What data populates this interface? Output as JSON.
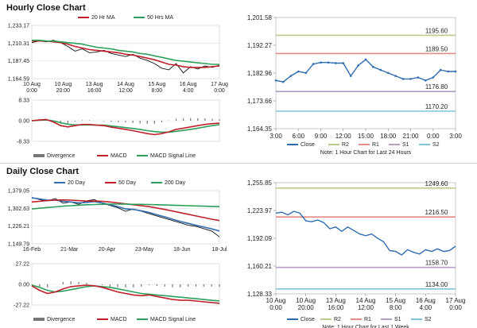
{
  "colors": {
    "ma20": "#c0202a",
    "ma50": "#2ca05a",
    "price": "#111111",
    "macd": "#c0202a",
    "signal": "#2ca05a",
    "divergence": "#777777",
    "close": "#2f6db0",
    "r2": "#b9cc88",
    "r1": "#e88a8a",
    "s1": "#b49ec4",
    "s2": "#7ec4dc"
  },
  "hourly": {
    "title": "Hourly Close Chart",
    "ma_chart": {
      "type": "line",
      "legend": [
        "20 Hr MA",
        "50 Hrs MA"
      ],
      "y_ticks": [
        "1,233.17",
        "1,210.31",
        "1,187.45",
        "1,164.59"
      ],
      "ylim": [
        1164.59,
        1233.17
      ],
      "x_ticks": [
        "10 Aug\n0:00",
        "10 Aug\n20:00",
        "13 Aug\n16:00",
        "14 Aug\n12:00",
        "15 Aug\n8:00",
        "16 Aug\n4:00",
        "17 Aug\n0:00"
      ],
      "series": [
        {
          "name": "Price",
          "values": [
            1211,
            1213,
            1212,
            1214,
            1211,
            1206,
            1200,
            1203,
            1198,
            1199,
            1201,
            1197,
            1195,
            1193,
            1196,
            1191,
            1188,
            1184,
            1178,
            1176,
            1184,
            1172,
            1180,
            1177,
            1181,
            1179,
            1182
          ]
        },
        {
          "name": "20 Hr MA",
          "values": [
            1213,
            1213,
            1213,
            1212,
            1211,
            1209,
            1206,
            1204,
            1202,
            1201,
            1200,
            1199,
            1198,
            1196,
            1195,
            1193,
            1191,
            1189,
            1186,
            1183,
            1182,
            1180,
            1179,
            1179,
            1179,
            1180,
            1181
          ]
        },
        {
          "name": "50 Hrs MA",
          "values": [
            1214,
            1214,
            1213,
            1213,
            1212,
            1211,
            1210,
            1209,
            1207,
            1205,
            1204,
            1203,
            1201,
            1200,
            1199,
            1197,
            1196,
            1194,
            1192,
            1190,
            1188,
            1187,
            1186,
            1185,
            1184,
            1183,
            1183
          ]
        }
      ]
    },
    "macd_chart": {
      "type": "line",
      "y_ticks": [
        "8.33",
        "0.00",
        "-8.33"
      ],
      "ylim": [
        -8.33,
        8.33
      ],
      "legend": [
        "Divergence",
        "MACD",
        "MACD Signal Line"
      ],
      "series": [
        {
          "name": "MACD",
          "values": [
            0,
            0.3,
            0.5,
            -0.5,
            -2,
            -2.5,
            -2,
            -1.5,
            -1.5,
            -1.8,
            -2,
            -2.6,
            -3,
            -3.5,
            -4,
            -4.6,
            -5.2,
            -5.6,
            -5.2,
            -4.5,
            -3.5,
            -3,
            -2.5,
            -2,
            -1.5,
            -1.2,
            -1
          ]
        },
        {
          "name": "MACD Signal Line",
          "values": [
            0,
            0.2,
            0.3,
            -0.1,
            -0.8,
            -1.4,
            -1.7,
            -1.7,
            -1.7,
            -1.8,
            -1.8,
            -2.1,
            -2.4,
            -2.8,
            -3.1,
            -3.5,
            -4,
            -4.4,
            -4.6,
            -4.6,
            -4.3,
            -3.9,
            -3.5,
            -3,
            -2.5,
            -2,
            -1.6
          ]
        },
        {
          "name": "Divergence",
          "values": [
            0,
            0.1,
            0.2,
            -0.4,
            -1.2,
            -1.1,
            -0.3,
            0.2,
            0.2,
            0,
            -0.2,
            -0.5,
            -0.6,
            -0.7,
            -0.9,
            -1.1,
            -1.2,
            -1.2,
            -0.6,
            0.1,
            0.8,
            0.9,
            1,
            1,
            1,
            0.8,
            0.6
          ]
        }
      ]
    },
    "intraday_chart": {
      "type": "line",
      "y_ticks": [
        "1,201.58",
        "1,192.27",
        "1,182.96",
        "1,173.66",
        "1,164.35"
      ],
      "ylim": [
        1164.35,
        1201.58
      ],
      "x_ticks": [
        "3:00",
        "6:00",
        "9:00",
        "12:00",
        "15:00",
        "18:00",
        "21:00",
        "0:00",
        "3:00"
      ],
      "levels": [
        {
          "name": "R2",
          "value": 1195.6,
          "label": "1195.60"
        },
        {
          "name": "R1",
          "value": 1189.5,
          "label": "1189.50"
        },
        {
          "name": "S1",
          "value": 1176.8,
          "label": "1176.80"
        },
        {
          "name": "S2",
          "value": 1170.2,
          "label": "1170.20"
        }
      ],
      "close": [
        1180.5,
        1180,
        1182,
        1183.5,
        1183,
        1186,
        1186.5,
        1186.5,
        1186.3,
        1186.3,
        1182,
        1185.5,
        1187.5,
        1185,
        1184,
        1183,
        1182,
        1181,
        1181,
        1181.5,
        1180.5,
        1181.5,
        1184,
        1183.5,
        1183.5
      ],
      "legend": [
        "Close",
        "R2",
        "R1",
        "S1",
        "S2"
      ],
      "note": "Note: 1 Hour Chart for Last 24 Hours"
    }
  },
  "daily": {
    "title": "Daily Close Chart",
    "ma_chart": {
      "type": "line",
      "legend": [
        "20 Day",
        "50 Day",
        "200 Day"
      ],
      "y_ticks": [
        "1,379.05",
        "1,302.63",
        "1,226.21",
        "1,149.79"
      ],
      "ylim": [
        1149.79,
        1379.05
      ],
      "x_ticks": [
        "16-Feb",
        "21-Mar",
        "20-Apr",
        "23-May",
        "18-Jun",
        "18-Jul"
      ],
      "series": [
        {
          "name": "Price",
          "values": [
            1350,
            1340,
            1335,
            1345,
            1325,
            1330,
            1320,
            1335,
            1340,
            1325,
            1315,
            1305,
            1290,
            1300,
            1290,
            1280,
            1270,
            1260,
            1250,
            1240,
            1230,
            1225,
            1215,
            1205,
            1180
          ]
        },
        {
          "name": "20 Day",
          "values": [
            1348,
            1343,
            1338,
            1338,
            1333,
            1330,
            1326,
            1328,
            1332,
            1326,
            1318,
            1310,
            1300,
            1298,
            1292,
            1285,
            1275,
            1266,
            1256,
            1246,
            1238,
            1230,
            1222,
            1214,
            1205
          ]
        },
        {
          "name": "50 Day",
          "values": [
            1330,
            1333,
            1336,
            1338,
            1339,
            1338,
            1336,
            1334,
            1334,
            1333,
            1330,
            1326,
            1322,
            1318,
            1314,
            1310,
            1304,
            1298,
            1291,
            1284,
            1277,
            1270,
            1263,
            1256,
            1250
          ]
        },
        {
          "name": "200 Day",
          "values": [
            1300,
            1303,
            1306,
            1309,
            1312,
            1314,
            1316,
            1318,
            1319,
            1320,
            1321,
            1321,
            1321,
            1320,
            1320,
            1319,
            1318,
            1317,
            1316,
            1315,
            1314,
            1313,
            1312,
            1311,
            1310
          ]
        }
      ]
    },
    "macd_chart": {
      "type": "line",
      "y_ticks": [
        "27.22",
        "0.00",
        "-27.22"
      ],
      "ylim": [
        -27.22,
        27.22
      ],
      "legend": [
        "Divergence",
        "MACD",
        "MACD Signal Line"
      ],
      "series": [
        {
          "name": "MACD",
          "values": [
            -2,
            -8,
            -12,
            -10,
            -6,
            -3,
            -2,
            -1,
            -2,
            -4,
            -7,
            -10,
            -12,
            -14,
            -15,
            -14,
            -16,
            -18,
            -20,
            -21,
            -21,
            -22,
            -23,
            -24,
            -25
          ]
        },
        {
          "name": "MACD Signal Line",
          "values": [
            -1,
            -4,
            -8,
            -10,
            -9,
            -7,
            -5,
            -3,
            -2,
            -3,
            -4,
            -6,
            -8,
            -10,
            -12,
            -13,
            -14,
            -15,
            -16,
            -17,
            -18,
            -19,
            -20,
            -21,
            -22
          ]
        },
        {
          "name": "Divergence",
          "values": [
            -1,
            -3,
            -4,
            0,
            3,
            4,
            3,
            2,
            0,
            -1,
            -3,
            -4,
            -4,
            -4,
            -3,
            -1,
            -2,
            -3,
            -4,
            -4,
            -3,
            -3,
            -3,
            -3,
            -3
          ]
        }
      ]
    },
    "hourly_week_chart": {
      "type": "line",
      "y_ticks": [
        "1,255.85",
        "1,223.97",
        "1,192.09",
        "1,160.21",
        "1,128.33"
      ],
      "ylim": [
        1128.33,
        1255.85
      ],
      "x_ticks": [
        "10 Aug\n0:00",
        "10 Aug\n20:00",
        "13 Aug\n16:00",
        "14 Aug\n12:00",
        "15 Aug\n8:00",
        "16 Aug\n4:00",
        "17 Aug\n0:00"
      ],
      "levels": [
        {
          "name": "R2",
          "value": 1249.6,
          "label": "1249.60"
        },
        {
          "name": "R1",
          "value": 1216.5,
          "label": "1216.50"
        },
        {
          "name": "S1",
          "value": 1158.7,
          "label": "1158.70"
        },
        {
          "name": "S2",
          "value": 1134.0,
          "label": "1134.00"
        }
      ],
      "close": [
        1221,
        1222,
        1219,
        1223,
        1221,
        1212,
        1211,
        1213,
        1210,
        1203,
        1205,
        1200,
        1205,
        1201,
        1197,
        1195,
        1197,
        1192,
        1188,
        1178,
        1177,
        1173,
        1179,
        1176,
        1174,
        1179,
        1177,
        1180,
        1177,
        1178,
        1183
      ],
      "legend": [
        "Close",
        "R2",
        "R1",
        "S1",
        "S2"
      ],
      "note": "Note: 1 Hour Chart for Last 1 Week"
    }
  }
}
